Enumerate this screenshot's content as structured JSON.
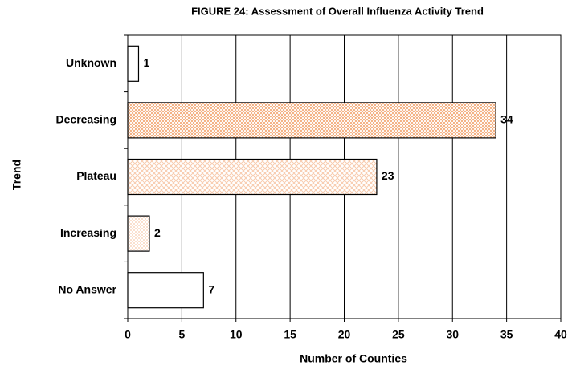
{
  "chart_data": {
    "type": "hbar",
    "title": "FIGURE 24: Assessment of Overall Influenza Activity Trend",
    "x_label": "Number of Counties",
    "y_label": "Trend",
    "categories": [
      "Unknown",
      "Decreasing",
      "Plateau",
      "Increasing",
      "No Answer"
    ],
    "values": [
      1,
      34,
      23,
      2,
      7
    ],
    "colors": [
      "#ffffff",
      "#f4b183",
      "#f8cbad",
      "#f8cbad",
      "#ffffff"
    ],
    "xlim": [
      0,
      40
    ],
    "xticks": [
      0,
      5,
      10,
      15,
      20,
      25,
      30,
      35,
      40
    ],
    "grid": true
  }
}
